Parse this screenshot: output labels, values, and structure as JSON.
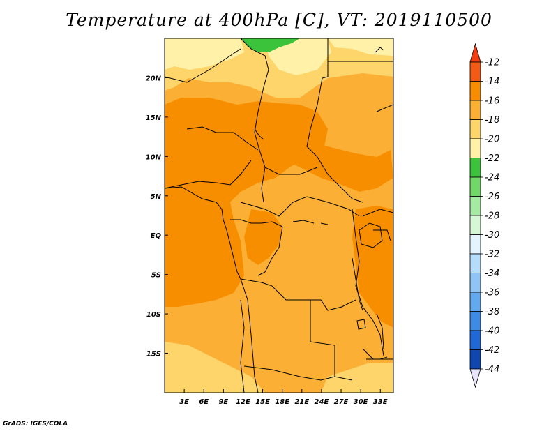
{
  "title": "Temperature at 400hPa [C], VT: 2019110500",
  "credit": "GrADS: IGES/COLA",
  "map": {
    "lon_range": [
      0,
      35
    ],
    "lat_range": [
      -20,
      25
    ],
    "lon_ticks": [
      "3E",
      "6E",
      "9E",
      "12E",
      "15E",
      "18E",
      "21E",
      "24E",
      "27E",
      "30E",
      "33E"
    ],
    "lat_ticks": [
      "20N",
      "15N",
      "10N",
      "5N",
      "EQ",
      "5S",
      "10S",
      "15S"
    ]
  },
  "colorbar": {
    "levels": [
      "-12",
      "-14",
      "-16",
      "-18",
      "-20",
      "-22",
      "-24",
      "-26",
      "-28",
      "-30",
      "-32",
      "-34",
      "-36",
      "-38",
      "-40",
      "-42",
      "-44"
    ],
    "colors": [
      "#f35a16",
      "#f78e00",
      "#fbb035",
      "#fdd56b",
      "#fff2a8",
      "#3bc43b",
      "#6fd868",
      "#a4eaa0",
      "#d6f7d4",
      "#e3f3ff",
      "#b5dcfa",
      "#8ec5f5",
      "#62a9ef",
      "#3d8be6",
      "#1f68d6",
      "#0f46b0",
      "#081a78"
    ],
    "top_arrow_color": "#f53c10",
    "bottom_arrow_color": "#e7e4fb"
  }
}
